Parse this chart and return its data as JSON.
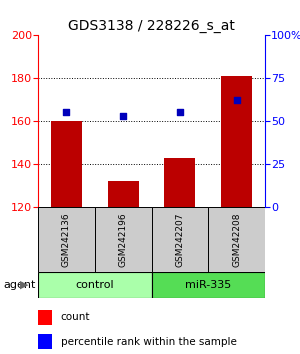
{
  "title": "GDS3138 / 228226_s_at",
  "samples": [
    "GSM242136",
    "GSM242196",
    "GSM242207",
    "GSM242208"
  ],
  "counts": [
    160,
    132,
    143,
    181
  ],
  "percentiles": [
    55,
    53,
    55,
    62
  ],
  "ylim_left": [
    120,
    200
  ],
  "ylim_right": [
    0,
    100
  ],
  "yticks_left": [
    120,
    140,
    160,
    180,
    200
  ],
  "yticks_right": [
    0,
    25,
    50,
    75,
    100
  ],
  "ytick_labels_right": [
    "0",
    "25",
    "50",
    "75",
    "100%"
  ],
  "bar_color": "#bb0000",
  "dot_color": "#0000bb",
  "bar_bottom": 120,
  "groups": [
    {
      "label": "control",
      "samples": [
        0,
        1
      ],
      "color": "#aaffaa"
    },
    {
      "label": "miR-335",
      "samples": [
        2,
        3
      ],
      "color": "#55dd55"
    }
  ],
  "group_label": "agent",
  "legend_count_label": "count",
  "legend_pct_label": "percentile rank within the sample",
  "sample_box_color": "#cccccc",
  "title_fontsize": 10,
  "tick_fontsize": 8,
  "label_fontsize": 8,
  "gridlines": [
    140,
    160,
    180
  ],
  "bar_width": 0.55
}
